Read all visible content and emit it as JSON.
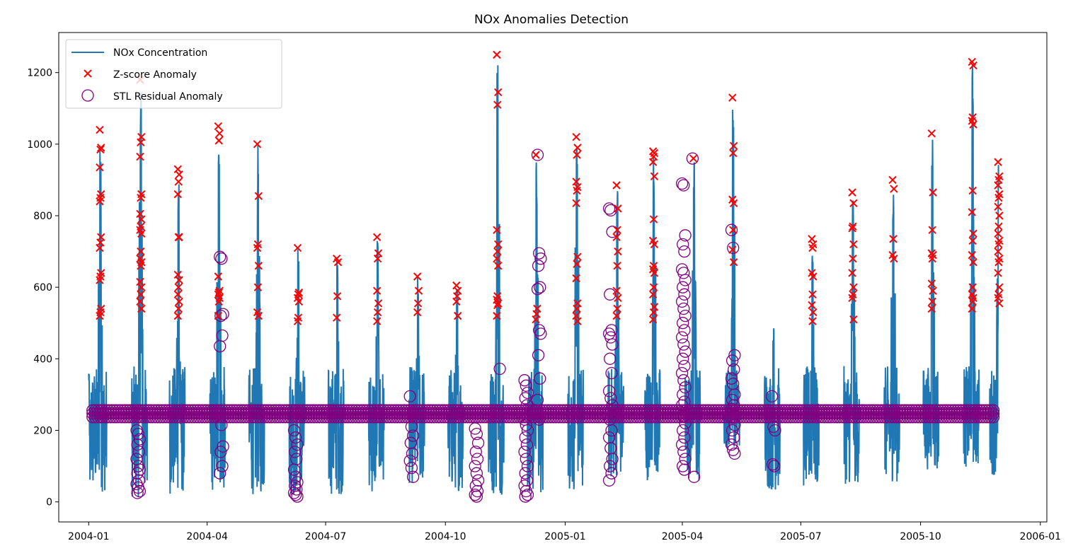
{
  "chart_data": {
    "type": "line",
    "title": "NOx Anomalies Detection",
    "xlabel": "",
    "ylabel": "",
    "x_range": [
      "2003-12-09",
      "2006-01-06"
    ],
    "y_range": [
      -56,
      1312
    ],
    "x_ticks": [
      "2004-01",
      "2004-04",
      "2004-07",
      "2004-10",
      "2005-01",
      "2005-04",
      "2005-07",
      "2005-10",
      "2006-01"
    ],
    "x_tick_dates": [
      "2004-01-01",
      "2004-04-01",
      "2004-07-01",
      "2004-10-01",
      "2005-01-01",
      "2005-04-01",
      "2005-07-01",
      "2005-10-01",
      "2006-01-01"
    ],
    "y_ticks": [
      0,
      200,
      400,
      600,
      800,
      1000,
      1200
    ],
    "y_tick_labels": [
      "0",
      "200",
      "400",
      "600",
      "800",
      "1000",
      "1200"
    ],
    "grid": false,
    "legend_position": "top-left",
    "colors": {
      "line": "#1f77b4",
      "zscore": "#ff0000",
      "stl": "#800080",
      "axes": "#000000"
    },
    "series": [
      {
        "name": "NOx Concentration",
        "kind": "line",
        "baseline": 247,
        "start": "2004-01-01",
        "end": "2005-11-30",
        "spikes": [
          {
            "date": "2004-01-01",
            "peak": 378,
            "low": 20
          },
          {
            "date": "2004-01-10",
            "peak": 1040,
            "low": 25
          },
          {
            "date": "2004-02-10",
            "peak": 1200,
            "low": 10
          },
          {
            "date": "2004-03-10",
            "peak": 930,
            "low": 20
          },
          {
            "date": "2004-04-10",
            "peak": 1050,
            "low": 25
          },
          {
            "date": "2004-05-10",
            "peak": 1000,
            "low": 20
          },
          {
            "date": "2004-06-10",
            "peak": 710,
            "low": 15
          },
          {
            "date": "2004-07-10",
            "peak": 680,
            "low": 20
          },
          {
            "date": "2004-08-10",
            "peak": 740,
            "low": 20
          },
          {
            "date": "2004-09-10",
            "peak": 630,
            "low": 50
          },
          {
            "date": "2004-10-10",
            "peak": 605,
            "low": 30
          },
          {
            "date": "2004-11-10",
            "peak": 1250,
            "low": 20
          },
          {
            "date": "2004-12-10",
            "peak": 970,
            "low": 20
          },
          {
            "date": "2005-01-10",
            "peak": 1020,
            "low": 30
          },
          {
            "date": "2005-02-10",
            "peak": 880,
            "low": 60
          },
          {
            "date": "2005-03-10",
            "peak": 980,
            "low": 60
          },
          {
            "date": "2005-04-10",
            "peak": 960,
            "low": 50
          },
          {
            "date": "2005-05-10",
            "peak": 1130,
            "low": 150
          },
          {
            "date": "2005-06-10",
            "peak": 490,
            "low": 30
          },
          {
            "date": "2005-07-10",
            "peak": 735,
            "low": 35
          },
          {
            "date": "2005-08-10",
            "peak": 865,
            "low": 50
          },
          {
            "date": "2005-09-10",
            "peak": 900,
            "low": 55
          },
          {
            "date": "2005-10-10",
            "peak": 1030,
            "low": 90
          },
          {
            "date": "2005-11-10",
            "peak": 1230,
            "low": 95
          },
          {
            "date": "2005-11-30",
            "peak": 950,
            "low": 75
          }
        ]
      },
      {
        "name": "Z-score Anomaly",
        "kind": "scatter",
        "marker": "x",
        "clusters": [
          {
            "date": "2004-01-10",
            "values": [
              1040,
              990,
              985,
              935,
              860,
              850,
              840,
              740,
              725,
              710,
              640,
              630,
              620,
              540,
              530,
              520
            ]
          },
          {
            "date": "2004-02-10",
            "values": [
              1180,
              1020,
              1005,
              965,
              860,
              850,
              805,
              790,
              770,
              760,
              750,
              700,
              680,
              670,
              660,
              615,
              600,
              580,
              560,
              540
            ]
          },
          {
            "date": "2004-03-10",
            "values": [
              930,
              915,
              895,
              860,
              740,
              740,
              635,
              620,
              600,
              580,
              560,
              540,
              520
            ]
          },
          {
            "date": "2004-04-10",
            "values": [
              1050,
              1030,
              1010,
              630,
              590,
              585,
              580,
              570,
              560,
              520
            ]
          },
          {
            "date": "2004-05-10",
            "values": [
              1000,
              855,
              720,
              710,
              660,
              600,
              530,
              520
            ]
          },
          {
            "date": "2004-06-10",
            "values": [
              710,
              585,
              580,
              570,
              560,
              515,
              505
            ]
          },
          {
            "date": "2004-07-10",
            "values": [
              680,
              670,
              575,
              515
            ]
          },
          {
            "date": "2004-08-10",
            "values": [
              740,
              695,
              680,
              590,
              555,
              530,
              505
            ]
          },
          {
            "date": "2004-09-10",
            "values": [
              630,
              590,
              555,
              530
            ]
          },
          {
            "date": "2004-10-10",
            "values": [
              605,
              590,
              575,
              560,
              520
            ]
          },
          {
            "date": "2004-11-10",
            "values": [
              1250,
              1145,
              1110,
              760,
              720,
              700,
              680,
              660,
              575,
              565,
              555,
              550,
              520
            ]
          },
          {
            "date": "2004-12-10",
            "values": [
              970,
              540,
              525,
              510
            ]
          },
          {
            "date": "2005-01-10",
            "values": [
              1020,
              990,
              970,
              895,
              880,
              870,
              835,
              685,
              665,
              625,
              555,
              540,
              520,
              505
            ]
          },
          {
            "date": "2005-02-10",
            "values": [
              885,
              820,
              760,
              740,
              700,
              660,
              590,
              570,
              540,
              520
            ]
          },
          {
            "date": "2005-03-10",
            "values": [
              980,
              975,
              965,
              950,
              910,
              790,
              730,
              720,
              660,
              650,
              640,
              600,
              580,
              545,
              530,
              510
            ]
          },
          {
            "date": "2005-04-10",
            "values": [
              960
            ]
          },
          {
            "date": "2005-05-10",
            "values": [
              1130,
              995,
              975,
              845,
              835,
              760,
              705,
              670
            ]
          },
          {
            "date": "2005-07-10",
            "values": [
              735,
              720,
              710,
              640,
              630,
              580,
              550,
              530,
              505
            ]
          },
          {
            "date": "2005-08-10",
            "values": [
              865,
              835,
              770,
              765,
              720,
              680,
              640,
              600,
              580,
              570,
              510
            ]
          },
          {
            "date": "2005-09-10",
            "values": [
              900,
              875,
              735,
              690,
              680
            ]
          },
          {
            "date": "2005-10-10",
            "values": [
              1030,
              865,
              760,
              695,
              690,
              680,
              610,
              590,
              560,
              540
            ]
          },
          {
            "date": "2005-11-10",
            "values": [
              1230,
              1220,
              1075,
              1065,
              1055,
              870,
              810,
              750,
              730,
              690,
              670,
              600,
              580,
              570,
              560,
              540
            ]
          },
          {
            "date": "2005-11-30",
            "values": [
              950,
              910,
              900,
              885,
              860,
              850,
              825,
              800,
              770,
              750,
              730,
              720,
              700,
              680,
              670,
              640,
              600,
              580,
              570,
              555
            ]
          }
        ]
      },
      {
        "name": "STL Residual Anomaly",
        "kind": "scatter",
        "marker": "circle-open",
        "baseline_band": {
          "start": "2004-01-04",
          "end": "2005-11-27",
          "values": [
            237,
            247,
            256
          ]
        },
        "clusters": [
          {
            "date": "2004-02-08",
            "values": [
              200,
              190,
              175,
              160,
              140,
              120,
              100,
              90,
              80,
              60,
              50,
              40,
              30,
              25
            ]
          },
          {
            "date": "2004-04-12",
            "values": [
              685,
              680,
              525,
              520,
              465,
              435,
              215,
              155,
              140,
              100,
              80
            ]
          },
          {
            "date": "2004-06-08",
            "values": [
              200,
              180,
              160,
              140,
              120,
              90,
              70,
              55,
              45,
              35,
              25,
              20,
              15
            ]
          },
          {
            "date": "2004-09-05",
            "values": [
              295,
              210,
              185,
              165,
              135,
              115,
              95,
              70
            ]
          },
          {
            "date": "2004-10-25",
            "values": [
              205,
              190,
              165,
              140,
              120,
              100,
              80,
              60,
              45,
              30,
              20,
              15
            ]
          },
          {
            "date": "2004-12-02",
            "values": [
              340,
              325,
              305,
              290,
              270,
              230,
              215,
              200,
              180,
              160,
              140,
              120,
              100,
              80,
              60,
              45,
              30,
              20,
              15
            ]
          },
          {
            "date": "2004-12-12",
            "values": [
              970,
              695,
              680,
              660,
              600,
              595,
              480,
              470,
              410,
              345,
              285,
              230
            ]
          },
          {
            "date": "2004-11-13",
            "values": [
              372
            ]
          },
          {
            "date": "2005-02-05",
            "values": [
              820,
              815,
              755,
              580,
              480,
              470,
              460,
              440,
              400,
              360,
              310,
              290,
              270,
              230,
              200,
              180,
              150,
              120,
              100,
              80,
              60
            ]
          },
          {
            "date": "2005-04-02",
            "values": [
              890,
              885,
              745,
              720,
              700,
              650,
              640,
              620,
              600,
              580,
              560,
              540,
              520,
              500,
              480,
              460,
              440,
              420,
              400,
              380,
              360,
              340,
              320,
              300,
              280,
              270,
              240,
              220,
              200,
              180,
              160,
              140,
              120,
              100,
              90
            ]
          },
          {
            "date": "2005-04-10",
            "values": [
              960,
              70
            ]
          },
          {
            "date": "2005-05-10",
            "values": [
              760,
              710,
              410,
              395,
              370,
              345,
              330,
              300,
              285,
              270,
              260,
              235,
              215,
              200,
              180,
              160,
              145,
              135
            ]
          },
          {
            "date": "2005-06-10",
            "values": [
              295,
              210,
              200,
              105,
              100
            ]
          }
        ]
      }
    ]
  }
}
